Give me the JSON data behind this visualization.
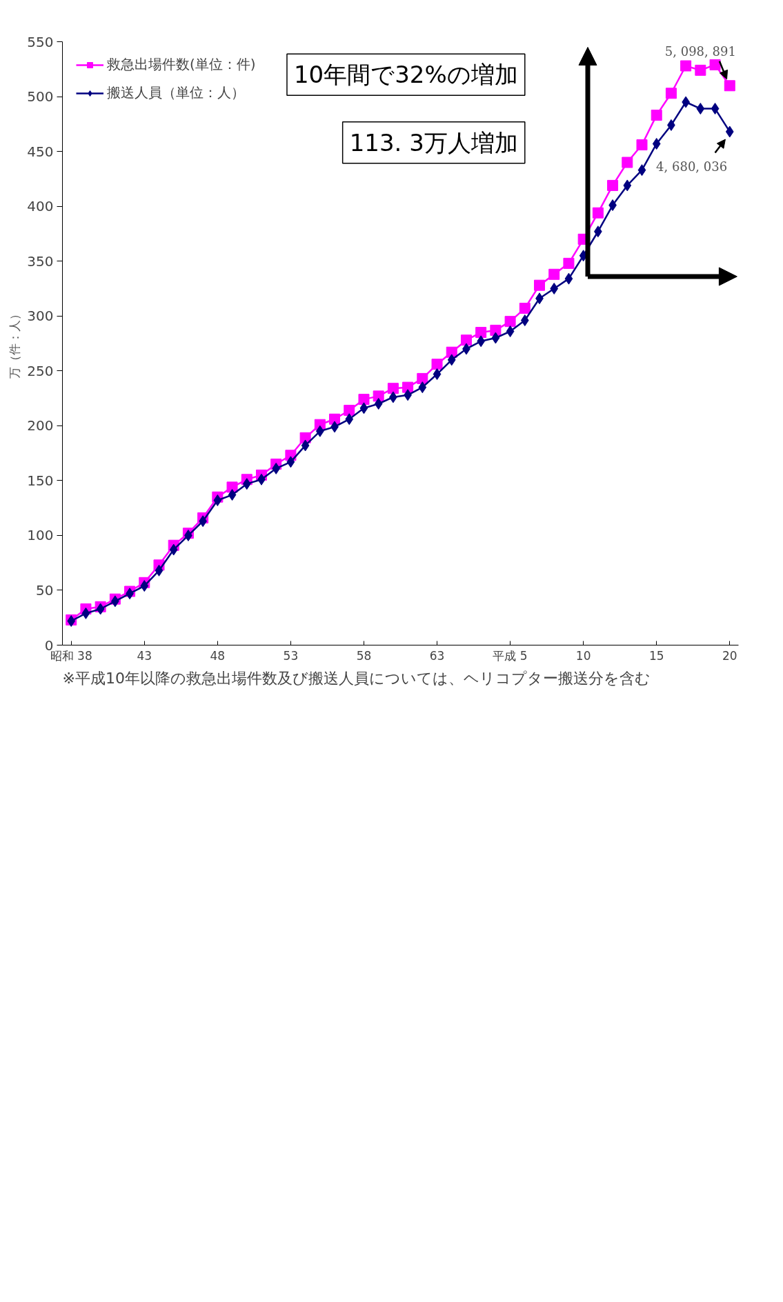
{
  "chart_data": {
    "type": "line",
    "ylabel": "万（件：人）",
    "grid": false,
    "legend": "top left",
    "categories": [
      "昭和 38",
      null,
      null,
      null,
      null,
      "43",
      null,
      null,
      null,
      null,
      "48",
      null,
      null,
      null,
      null,
      "53",
      null,
      null,
      null,
      null,
      "58",
      null,
      null,
      null,
      null,
      "63",
      null,
      null,
      null,
      null,
      "平成 5",
      null,
      null,
      null,
      null,
      "10",
      null,
      null,
      null,
      null,
      "15",
      null,
      null,
      null,
      null,
      "20"
    ],
    "ylim": [
      0,
      550
    ],
    "yticks": [
      0,
      50,
      100,
      150,
      200,
      250,
      300,
      350,
      400,
      450,
      500,
      550
    ],
    "series": [
      {
        "name": "救急出場件数(単位：件)",
        "color": "#ff00ff",
        "marker": "square",
        "values": [
          23,
          33,
          35,
          42,
          49,
          57,
          73,
          91,
          102,
          116,
          135,
          144,
          151,
          155,
          165,
          173,
          189,
          201,
          206,
          214,
          224,
          227,
          234,
          235,
          243,
          256,
          267,
          278,
          285,
          287,
          295,
          307,
          328,
          338,
          348,
          370,
          394,
          419,
          440,
          456,
          483,
          503,
          528,
          524,
          529,
          509.9
        ]
      },
      {
        "name": "搬送人員（単位：人）",
        "color": "#000080",
        "marker": "diamond",
        "values": [
          22,
          29,
          33,
          40,
          47,
          54,
          68,
          87,
          100,
          113,
          132,
          137,
          147,
          151,
          161,
          167,
          182,
          195,
          199,
          206,
          216,
          220,
          226,
          228,
          235,
          247,
          260,
          270,
          277,
          280,
          286,
          296,
          316,
          325,
          334,
          355,
          377,
          401,
          419,
          433,
          457,
          474,
          495,
          489,
          489,
          468.0
        ]
      }
    ],
    "annotations": [
      {
        "text": "5, 098, 891",
        "x": "20",
        "y": 509.9
      },
      {
        "text": "4, 680, 036",
        "x": "20",
        "y": 468.0
      },
      "10年間で32%の増加",
      "113. 3万人増加",
      "※平成10年以降の救急出場件数及び搬送人員については、ヘリコプター搬送分を含む"
    ]
  }
}
